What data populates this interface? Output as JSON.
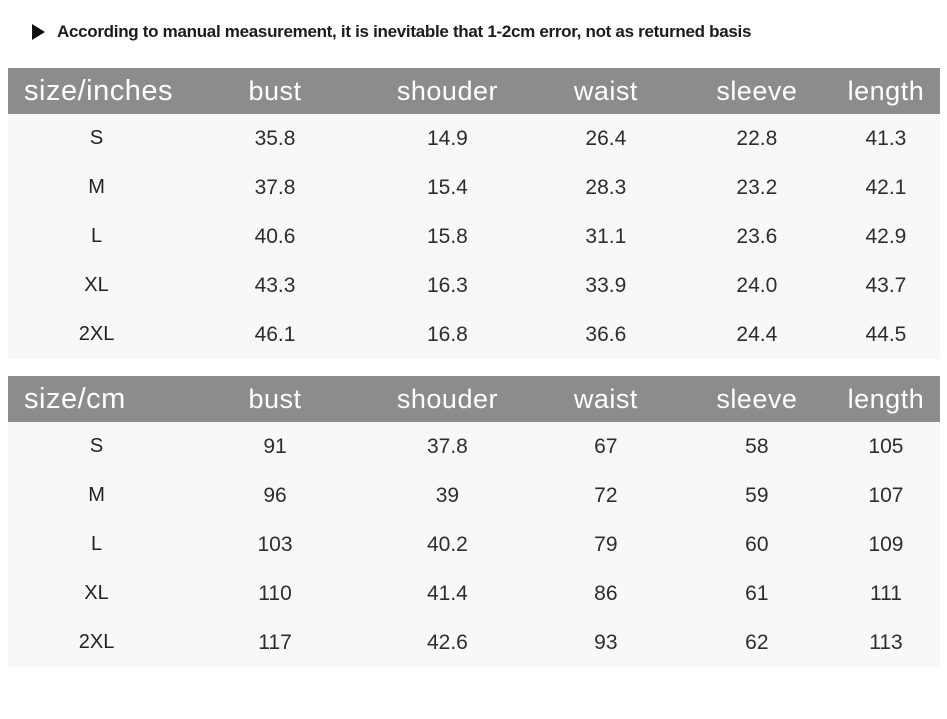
{
  "note": {
    "icon": "play-arrow-icon",
    "text": "According to manual measurement, it is inevitable that 1-2cm error, not as returned basis"
  },
  "colors": {
    "header_bg": "#8c8c8c",
    "header_text": "#ffffff",
    "body_bg": "#f8f8f8",
    "text_dark": "#2d2d2d"
  },
  "tables": [
    {
      "unit_label": "size/inches",
      "columns": [
        "bust",
        "shouder",
        "waist",
        "sleeve",
        "length"
      ],
      "rows": [
        {
          "size": "S",
          "values": [
            "35.8",
            "14.9",
            "26.4",
            "22.8",
            "41.3"
          ]
        },
        {
          "size": "M",
          "values": [
            "37.8",
            "15.4",
            "28.3",
            "23.2",
            "42.1"
          ]
        },
        {
          "size": "L",
          "values": [
            "40.6",
            "15.8",
            "31.1",
            "23.6",
            "42.9"
          ]
        },
        {
          "size": "XL",
          "values": [
            "43.3",
            "16.3",
            "33.9",
            "24.0",
            "43.7"
          ]
        },
        {
          "size": "2XL",
          "values": [
            "46.1",
            "16.8",
            "36.6",
            "24.4",
            "44.5"
          ]
        }
      ]
    },
    {
      "unit_label": "size/cm",
      "columns": [
        "bust",
        "shouder",
        "waist",
        "sleeve",
        "length"
      ],
      "rows": [
        {
          "size": "S",
          "values": [
            "91",
            "37.8",
            "67",
            "58",
            "105"
          ]
        },
        {
          "size": "M",
          "values": [
            "96",
            "39",
            "72",
            "59",
            "107"
          ]
        },
        {
          "size": "L",
          "values": [
            "103",
            "40.2",
            "79",
            "60",
            "109"
          ]
        },
        {
          "size": "XL",
          "values": [
            "110",
            "41.4",
            "86",
            "61",
            "111"
          ]
        },
        {
          "size": "2XL",
          "values": [
            "117",
            "42.6",
            "93",
            "62",
            "113"
          ]
        }
      ]
    }
  ],
  "chart_data": [
    {
      "type": "table",
      "title": "size/inches",
      "columns": [
        "size/inches",
        "bust",
        "shouder",
        "waist",
        "sleeve",
        "length"
      ],
      "rows": [
        [
          "S",
          35.8,
          14.9,
          26.4,
          22.8,
          41.3
        ],
        [
          "M",
          37.8,
          15.4,
          28.3,
          23.2,
          42.1
        ],
        [
          "L",
          40.6,
          15.8,
          31.1,
          23.6,
          42.9
        ],
        [
          "XL",
          43.3,
          16.3,
          33.9,
          24.0,
          43.7
        ],
        [
          "2XL",
          46.1,
          16.8,
          36.6,
          24.4,
          44.5
        ]
      ]
    },
    {
      "type": "table",
      "title": "size/cm",
      "columns": [
        "size/cm",
        "bust",
        "shouder",
        "waist",
        "sleeve",
        "length"
      ],
      "rows": [
        [
          "S",
          91,
          37.8,
          67,
          58,
          105
        ],
        [
          "M",
          96,
          39,
          72,
          59,
          107
        ],
        [
          "L",
          103,
          40.2,
          79,
          60,
          109
        ],
        [
          "XL",
          110,
          41.4,
          86,
          61,
          111
        ],
        [
          "2XL",
          117,
          42.6,
          93,
          62,
          113
        ]
      ]
    }
  ]
}
